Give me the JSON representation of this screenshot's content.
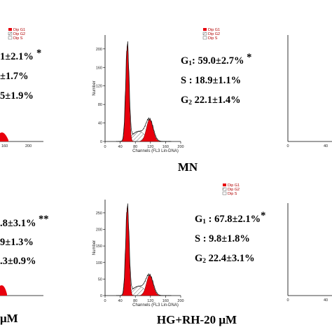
{
  "colors": {
    "g1_fill": "#e8000d",
    "s_hatch": "#444444",
    "envelope": "#111111",
    "background": "#ffffff"
  },
  "legend": [
    "Dip G1",
    "Dip G2",
    "Dip S"
  ],
  "chart_data": [
    {
      "type": "histogram",
      "panel_label": "MN",
      "xlabel": "Channels (FL3 Lin-DNA)",
      "ylabel": "Number",
      "xlim": [
        0,
        200
      ],
      "ylim": [
        0,
        230
      ],
      "xticks": [
        "0",
        "40",
        "80",
        "120",
        "160",
        "200"
      ],
      "yticks": [
        "0",
        "40",
        "80",
        "120",
        "160",
        "200"
      ],
      "peaks": [
        {
          "phase": "G1",
          "channel": 59,
          "height": 210
        },
        {
          "phase": "G2",
          "channel": 118,
          "height": 48
        }
      ],
      "stats": [
        {
          "label": "G1",
          "sub": "1",
          "value": ": 59.0±2.7%",
          "mark": " *"
        },
        {
          "label": "S",
          "sub": "",
          "value": " : 18.9±1.1%",
          "mark": ""
        },
        {
          "label": "G2",
          "sub": "2",
          "value": " 22.1±1.4%",
          "mark": ""
        }
      ]
    },
    {
      "type": "histogram",
      "panel_label": "HG+RH-20 μM",
      "xlabel": "Channels (FL3 Lin-DNA)",
      "ylabel": "Number",
      "xlim": [
        0,
        200
      ],
      "ylim": [
        0,
        290
      ],
      "xticks": [
        "0",
        "40",
        "80",
        "120",
        "160",
        "200"
      ],
      "yticks": [
        "0",
        "50",
        "100",
        "150",
        "200",
        "250"
      ],
      "peaks": [
        {
          "phase": "G1",
          "channel": 59,
          "height": 270
        },
        {
          "phase": "G2",
          "channel": 118,
          "height": 62
        }
      ],
      "stats": [
        {
          "label": "G1",
          "sub": "1",
          "value": " : 67.8±2.1%",
          "mark": "*"
        },
        {
          "label": "S",
          "sub": "",
          "value": " : 9.8±1.8%",
          "mark": ""
        },
        {
          "label": "G2",
          "sub": "2",
          "value": " 22.4±3.1%",
          "mark": ""
        }
      ]
    }
  ],
  "cropped_left": {
    "top_stats": [
      "1±2.1%",
      "±1.7%",
      "5±1.9%"
    ],
    "top_mark": " *",
    "top_ticks": [
      "160",
      "200"
    ],
    "bottom_stats": [
      ".8±3.1%",
      "9±1.3%",
      ".3±0.9%"
    ],
    "bottom_mark": "**",
    "bottom_label": "μM"
  },
  "cropped_right": {
    "top_ticks": [
      "0",
      "40"
    ],
    "bottom_ticks": [
      "0",
      "40"
    ]
  }
}
